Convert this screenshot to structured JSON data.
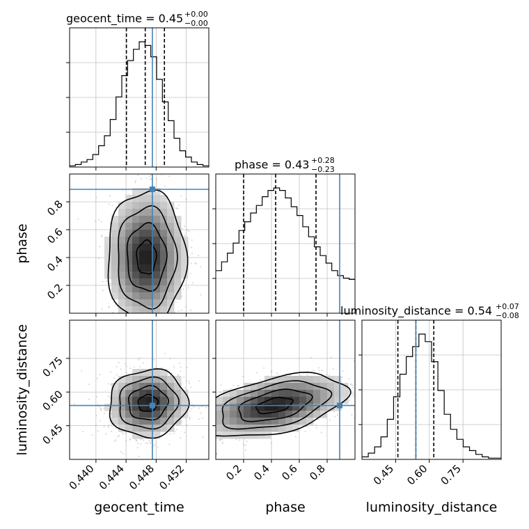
{
  "chart_data": {
    "type": "corner",
    "parameters": [
      "geocent_time",
      "phase",
      "luminosity_distance"
    ],
    "truths": {
      "geocent_time": 0.4475,
      "phase": 0.89,
      "luminosity_distance": 0.54
    },
    "colors": {
      "truth": "#4682b4",
      "hist": "#000000",
      "grid": "#c0c0c0",
      "scatter": "#888888"
    },
    "titles": [
      {
        "param": "geocent_time",
        "text": "geocent_time = 0.45",
        "plus": "+0.00",
        "minus": "−0.00"
      },
      {
        "param": "phase",
        "text": "phase = 0.43",
        "plus": "+0.28",
        "minus": "−0.23"
      },
      {
        "param": "luminosity_distance",
        "text": "luminosity_distance = 0.54",
        "plus": "+0.07",
        "minus": "−0.08"
      }
    ],
    "ranges": {
      "geocent_time": [
        0.4365,
        0.455
      ],
      "phase": [
        0.0,
        1.0
      ],
      "luminosity_distance": [
        0.3,
        0.92
      ]
    },
    "ticks": {
      "geocent_time": {
        "values": [
          0.44,
          0.444,
          0.448,
          0.452
        ],
        "labels": [
          "0.440",
          "0.444",
          "0.448",
          "0.452"
        ]
      },
      "phase": {
        "values": [
          0.2,
          0.4,
          0.6,
          0.8
        ],
        "labels": [
          "0.2",
          "0.4",
          "0.6",
          "0.8"
        ]
      },
      "luminosity_distance": {
        "values": [
          0.45,
          0.6,
          0.75
        ],
        "labels": [
          "0.45",
          "0.60",
          "0.75"
        ]
      }
    },
    "quantiles": {
      "geocent_time": [
        0.44405,
        0.44655,
        0.4491
      ],
      "phase": [
        0.2,
        0.43,
        0.72
      ],
      "luminosity_distance": [
        0.46,
        0.54,
        0.62
      ]
    },
    "histograms": {
      "geocent_time": [
        0.01,
        0.02,
        0.04,
        0.06,
        0.1,
        0.17,
        0.25,
        0.38,
        0.56,
        0.73,
        0.85,
        0.94,
        1.0,
        0.97,
        0.88,
        0.7,
        0.52,
        0.37,
        0.23,
        0.13,
        0.08,
        0.04,
        0.02,
        0.01
      ],
      "phase": [
        0.34,
        0.41,
        0.48,
        0.56,
        0.66,
        0.73,
        0.8,
        0.86,
        0.93,
        0.98,
        1.0,
        0.98,
        0.92,
        0.85,
        0.78,
        0.69,
        0.61,
        0.53,
        0.46,
        0.4,
        0.34,
        0.3,
        0.28,
        0.27
      ],
      "luminosity_distance": [
        0.02,
        0.05,
        0.1,
        0.18,
        0.32,
        0.5,
        0.68,
        0.82,
        0.9,
        1.0,
        0.94,
        0.78,
        0.55,
        0.36,
        0.24,
        0.16,
        0.1,
        0.07,
        0.04,
        0.02,
        0.01,
        0.01
      ]
    },
    "joint": [
      {
        "x": "geocent_time",
        "y": "phase",
        "mean": [
          0.4467,
          0.4
        ],
        "sd": [
          0.0026,
          0.24
        ],
        "rho": 0.0,
        "clip_y": [
          0.0,
          1.0
        ]
      },
      {
        "x": "geocent_time",
        "y": "luminosity_distance",
        "mean": [
          0.4469,
          0.55
        ],
        "sd": [
          0.0026,
          0.075
        ],
        "rho": 0.05
      },
      {
        "x": "phase",
        "y": "luminosity_distance",
        "mean": [
          0.42,
          0.54
        ],
        "sd": [
          0.26,
          0.07
        ],
        "rho": 0.45,
        "clip_x": [
          0.0,
          1.0
        ]
      }
    ]
  }
}
